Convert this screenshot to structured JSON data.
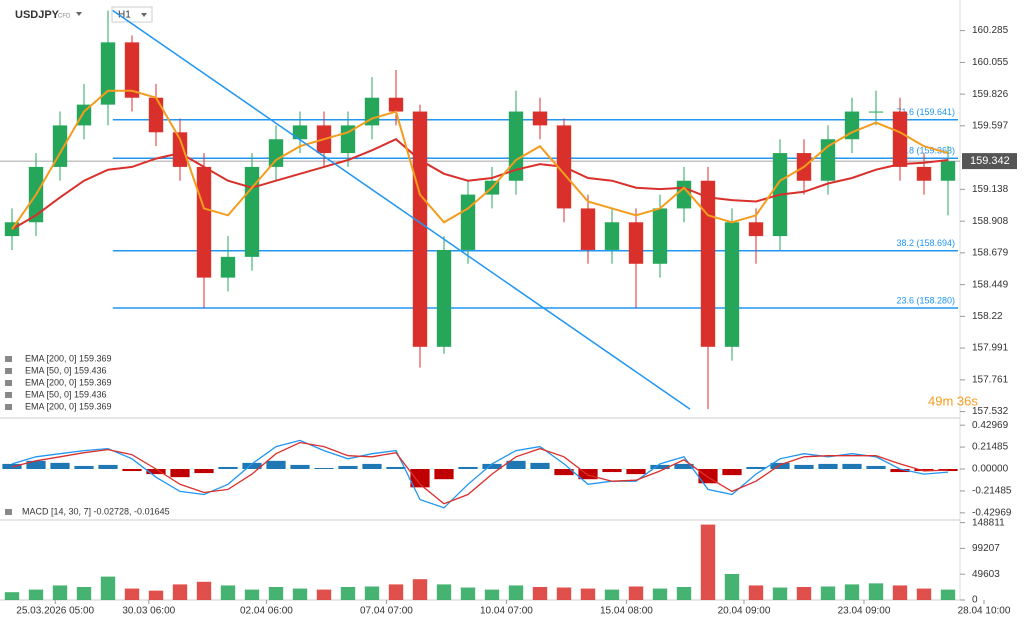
{
  "chart_data": {
    "type": "candlestick",
    "symbol": "USDJPY",
    "instrument_type": "CFD",
    "timeframe": "H1",
    "countdown": "49m 36s",
    "xlim": [
      0,
      40
    ],
    "xticks": [
      {
        "value": 2.3,
        "label": "25.03.2026 05:00"
      },
      {
        "value": 6.2,
        "label": "30.03 06:00"
      },
      {
        "value": 11.1,
        "label": "02.04 06:00"
      },
      {
        "value": 16.1,
        "label": "07.04 07:00"
      },
      {
        "value": 21.1,
        "label": "10.04 07:00"
      },
      {
        "value": 26.1,
        "label": "15.04 08:00"
      },
      {
        "value": 31,
        "label": "20.04 09:00"
      },
      {
        "value": 36,
        "label": "23.04 09:00"
      },
      {
        "value": 41,
        "label": "28.04 10:00"
      }
    ],
    "ylim": [
      157.5,
      160.47
    ],
    "yticks": [
      160.285,
      160.055,
      159.826,
      159.597,
      159.138,
      158.908,
      158.679,
      158.449,
      158.22,
      157.991,
      157.761,
      157.532
    ],
    "current_price": 159.342,
    "up_color": "#26a65b",
    "down_color": "#d9302c",
    "open": [
      158.8,
      158.9,
      159.3,
      159.6,
      159.75,
      160.2,
      159.8,
      159.55,
      159.3,
      158.5,
      158.65,
      159.3,
      159.5,
      159.6,
      159.4,
      159.6,
      159.8,
      159.7,
      158,
      158.7,
      159.1,
      159.2,
      159.7,
      159.6,
      159,
      158.7,
      158.9,
      158.6,
      159,
      159.2,
      158,
      158.9,
      158.8,
      159.4,
      159.2,
      159.5,
      159.7,
      159.7,
      159.3,
      159.2
    ],
    "high": [
      159,
      159.4,
      159.7,
      159.9,
      160.43,
      160.25,
      159.9,
      159.65,
      159.4,
      158.8,
      159.4,
      159.6,
      159.7,
      159.7,
      159.7,
      159.95,
      160,
      159.75,
      158.8,
      159.2,
      159.3,
      159.85,
      159.8,
      159.65,
      159.1,
      159,
      159,
      159.1,
      159.3,
      159.3,
      159,
      159,
      159.5,
      159.5,
      159.6,
      159.8,
      159.85,
      159.8,
      159.4,
      159.45
    ],
    "low": [
      158.7,
      158.8,
      159.2,
      159.5,
      159.6,
      159.7,
      159.45,
      159.2,
      158.28,
      158.4,
      158.55,
      159.2,
      159.4,
      159.3,
      159.3,
      159.5,
      159.6,
      157.85,
      157.95,
      158.6,
      159,
      159.1,
      159.5,
      158.9,
      158.6,
      158.6,
      158.28,
      158.5,
      158.9,
      157.55,
      157.9,
      158.6,
      158.7,
      159.1,
      159.1,
      159.4,
      159.6,
      159.2,
      159.1,
      158.95
    ],
    "close": [
      158.9,
      159.3,
      159.6,
      159.75,
      160.2,
      159.8,
      159.55,
      159.3,
      158.5,
      158.65,
      159.3,
      159.5,
      159.6,
      159.4,
      159.6,
      159.8,
      159.7,
      158,
      158.7,
      159.1,
      159.2,
      159.7,
      159.6,
      159,
      158.7,
      158.9,
      158.6,
      159,
      159.2,
      158,
      158.9,
      158.8,
      159.4,
      159.2,
      159.5,
      159.7,
      159.7,
      159.3,
      159.2,
      159.34
    ],
    "overlays": [
      {
        "color": "#d9302c",
        "values": [
          158.85,
          158.95,
          159.08,
          159.2,
          159.28,
          159.3,
          159.36,
          159.4,
          159.3,
          159.2,
          159.15,
          159.2,
          159.25,
          159.3,
          159.35,
          159.42,
          159.5,
          159.35,
          159.25,
          159.2,
          159.22,
          159.28,
          159.32,
          159.3,
          159.22,
          159.2,
          159.15,
          159.14,
          159.15,
          159.08,
          159.06,
          159.05,
          159.1,
          159.12,
          159.18,
          159.22,
          159.28,
          159.32,
          159.33,
          159.35
        ]
      },
      {
        "color": "#f39c1e",
        "values": [
          158.85,
          159.1,
          159.4,
          159.7,
          159.85,
          159.85,
          159.8,
          159.5,
          159.0,
          158.95,
          159.15,
          159.35,
          159.45,
          159.5,
          159.55,
          159.65,
          159.7,
          159.1,
          158.9,
          159.0,
          159.15,
          159.35,
          159.45,
          159.25,
          159.05,
          159.0,
          158.95,
          159.0,
          159.15,
          158.95,
          158.9,
          158.95,
          159.2,
          159.3,
          159.45,
          159.55,
          159.62,
          159.55,
          159.45,
          159.4
        ]
      }
    ],
    "legend_entries": [
      "EMA [200, 0] 159.369",
      "EMA [50, 0] 159.436",
      "EMA [200, 0] 159.369",
      "EMA [50, 0] 159.436",
      "EMA [200, 0] 159.369"
    ],
    "fib_levels": [
      {
        "value": 159.641,
        "label": "71.6 (159.641)"
      },
      {
        "value": 159.363,
        "label": "61.8 (159.363)"
      },
      {
        "value": 158.694,
        "label": "38.2 (158.694)"
      },
      {
        "value": 158.28,
        "label": "23.6 (158.280)"
      }
    ],
    "fib_start": 4.7,
    "trendline": {
      "x": [
        4.7,
        28.75
      ],
      "y": [
        160.43,
        157.55
      ]
    },
    "macd": {
      "label": "MACD [14, 30, 7] -0.02728, -0.01645",
      "ylim": [
        -0.5,
        0.5
      ],
      "yticks": [
        {
          "value": 0.42969,
          "label": "0.42969"
        },
        {
          "value": 0.21485,
          "label": "0.21485"
        },
        {
          "value": 0,
          "label": "0.00000"
        },
        {
          "value": -0.21485,
          "label": "-0.21485"
        },
        {
          "value": -0.42969,
          "label": "-0.42969"
        }
      ],
      "histogram": [
        0.05,
        0.08,
        0.06,
        0.03,
        0.04,
        -0.02,
        -0.05,
        -0.08,
        -0.04,
        0.02,
        0.06,
        0.08,
        0.04,
        0.01,
        0.03,
        0.05,
        0.02,
        -0.18,
        -0.1,
        0.02,
        0.05,
        0.08,
        0.06,
        -0.06,
        -0.1,
        -0.03,
        -0.05,
        0.04,
        0.05,
        -0.14,
        -0.06,
        0.02,
        0.06,
        0.04,
        0.05,
        0.05,
        0.03,
        -0.03,
        -0.02,
        -0.02
      ],
      "macd_line": [
        0.05,
        0.12,
        0.15,
        0.18,
        0.2,
        0.1,
        -0.08,
        -0.22,
        -0.25,
        -0.15,
        0.05,
        0.22,
        0.28,
        0.18,
        0.1,
        0.15,
        0.18,
        -0.3,
        -0.38,
        -0.15,
        0.05,
        0.18,
        0.22,
        0.05,
        -0.15,
        -0.12,
        -0.12,
        0.05,
        0.12,
        -0.2,
        -0.25,
        -0.05,
        0.1,
        0.15,
        0.12,
        0.15,
        0.12,
        0.0,
        -0.05,
        -0.03
      ],
      "signal_line": [
        0.02,
        0.08,
        0.12,
        0.16,
        0.19,
        0.14,
        0.0,
        -0.15,
        -0.23,
        -0.2,
        -0.05,
        0.15,
        0.26,
        0.22,
        0.13,
        0.12,
        0.16,
        -0.15,
        -0.34,
        -0.25,
        -0.05,
        0.12,
        0.2,
        0.12,
        -0.06,
        -0.12,
        -0.11,
        -0.02,
        0.09,
        -0.08,
        -0.22,
        -0.12,
        0.04,
        0.12,
        0.13,
        0.13,
        0.13,
        0.05,
        -0.02,
        -0.01
      ]
    },
    "volume": {
      "ylim": [
        0,
        150000
      ],
      "yticks": [
        148811,
        99207,
        49603,
        0
      ],
      "values": [
        15000,
        20000,
        28000,
        25000,
        45000,
        22000,
        18000,
        30000,
        35000,
        28000,
        20000,
        25000,
        22000,
        20000,
        25000,
        26000,
        30000,
        40000,
        30000,
        24000,
        20000,
        28000,
        25000,
        24000,
        22000,
        20000,
        26000,
        22000,
        25000,
        145000,
        50000,
        28000,
        24000,
        25000,
        26000,
        30000,
        32000,
        28000,
        22000,
        20000
      ]
    }
  }
}
